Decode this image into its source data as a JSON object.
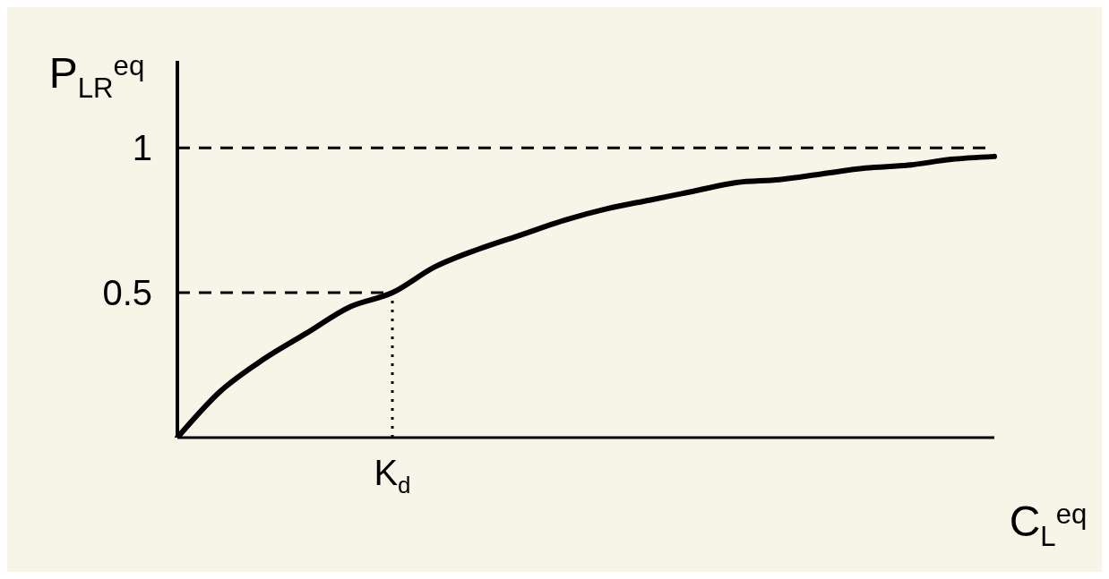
{
  "chart_data": {
    "type": "line",
    "xlabel": "C$_{L}$$^{eq}$",
    "ylabel": "P$_{LR}$$^{eq}$",
    "categories": [
      null,
      null,
      null,
      null,
      null,
      "K$_{d}$",
      null,
      null,
      null,
      null,
      null,
      null,
      null,
      null,
      null,
      null,
      null,
      null,
      null,
      null
    ],
    "values": [
      0,
      0.16,
      0.27,
      0.36,
      0.45,
      0.5,
      0.59,
      0.65,
      0.7,
      0.75,
      0.79,
      0.82,
      0.85,
      0.88,
      0.89,
      0.91,
      0.93,
      0.94,
      0.96,
      0.97
    ],
    "color": "#000000",
    "ylim": [
      0,
      1.3
    ],
    "yticks": [
      0.5,
      1
    ],
    "marker": "none",
    "line_style": "solid",
    "grid": false,
    "legend": false,
    "ref_lines": [
      {
        "axis": "y",
        "value": 1,
        "line_style": "dashed"
      },
      {
        "axis": "y",
        "value": 0.5,
        "line_style": "dashed"
      },
      {
        "axis": "x",
        "value": "K$_{d}$",
        "line_style": "dotted"
      }
    ]
  }
}
